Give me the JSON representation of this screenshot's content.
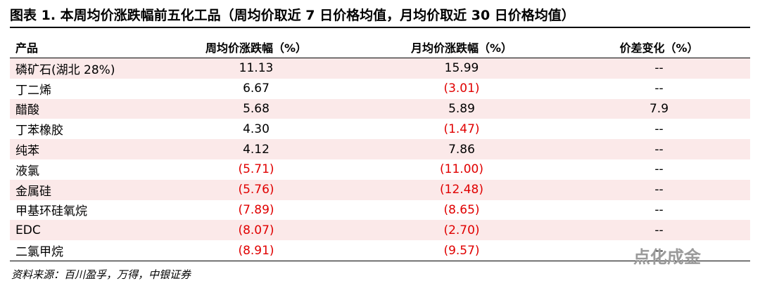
{
  "title": "图表 1. 本周均价涨跌幅前五化工品（周均价取近 7 日价格均值，月均价取近 30 日价格均值）",
  "table": {
    "header": [
      "产品",
      "周均价涨跌幅（%）",
      "月均价涨跌幅（%）",
      "价差变化（%）"
    ],
    "rows": [
      [
        "磷矿石(湖北 28%)",
        "11.13",
        "15.99",
        "--"
      ],
      [
        "丁二烯",
        "6.67",
        "(3.01)",
        "--"
      ],
      [
        "醋酸",
        "5.68",
        "5.89",
        "7.9"
      ],
      [
        "丁苯橡胶",
        "4.30",
        "(1.47)",
        "--"
      ],
      [
        "纯苯",
        "4.12",
        "7.86",
        "--"
      ],
      [
        "液氯",
        "(5.71)",
        "(11.00)",
        "--"
      ],
      [
        "金属硅",
        "(5.76)",
        "(12.48)",
        "--"
      ],
      [
        "甲基环硅氧烷",
        "(7.89)",
        "(8.65)",
        "--"
      ],
      [
        "EDC",
        "(8.07)",
        "(2.70)",
        "--"
      ],
      [
        "二氯甲烷",
        "(8.91)",
        "(9.57)",
        "--"
      ]
    ]
  },
  "source": "资料来源：百川盈孚，万得，中银证券",
  "watermark": "点化成金"
}
